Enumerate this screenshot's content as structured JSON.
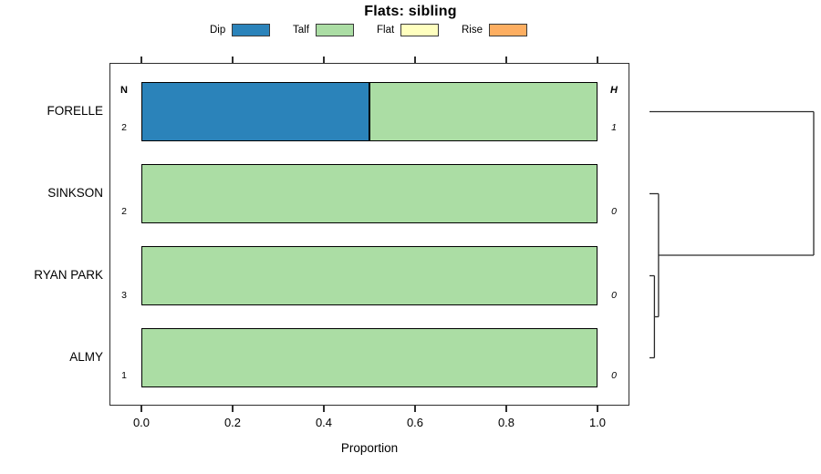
{
  "title": "Flats: sibling",
  "legend": {
    "items": [
      {
        "label": "Dip",
        "color": "#2B83BA"
      },
      {
        "label": "Talf",
        "color": "#ABDDA4"
      },
      {
        "label": "Flat",
        "color": "#FFFFBF"
      },
      {
        "label": "Rise",
        "color": "#FDAE61"
      }
    ]
  },
  "columns": {
    "n_header": "N",
    "h_header": "H"
  },
  "axis": {
    "label": "Proportion",
    "ticks": [
      "0.0",
      "0.2",
      "0.4",
      "0.6",
      "0.8",
      "1.0"
    ],
    "tick_values": [
      0.0,
      0.2,
      0.4,
      0.6,
      0.8,
      1.0
    ]
  },
  "chart_data": {
    "type": "bar",
    "orientation": "horizontal-stacked",
    "title": "Flats: sibling",
    "xlabel": "Proportion",
    "xlim": [
      0,
      1
    ],
    "categories": [
      "Dip",
      "Talf",
      "Flat",
      "Rise"
    ],
    "category_colors": {
      "Dip": "#2B83BA",
      "Talf": "#ABDDA4",
      "Flat": "#FFFFBF",
      "Rise": "#FDAE61"
    },
    "rows": [
      {
        "label": "FORELLE",
        "n": "2",
        "h": "1",
        "segments": [
          {
            "category": "Dip",
            "value": 0.5
          },
          {
            "category": "Talf",
            "value": 0.5
          }
        ]
      },
      {
        "label": "SINKSON",
        "n": "2",
        "h": "0",
        "segments": [
          {
            "category": "Talf",
            "value": 1.0
          }
        ]
      },
      {
        "label": "RYAN PARK",
        "n": "3",
        "h": "0",
        "segments": [
          {
            "category": "Talf",
            "value": 1.0
          }
        ]
      },
      {
        "label": "ALMY",
        "n": "1",
        "h": "0",
        "segments": [
          {
            "category": "Talf",
            "value": 1.0
          }
        ]
      }
    ],
    "dendrogram": {
      "position": "right",
      "leaves": [
        "FORELLE",
        "SINKSON",
        "RYAN PARK",
        "ALMY"
      ],
      "merges": [
        {
          "id": "m0",
          "children": [
            "RYAN PARK",
            "ALMY"
          ],
          "height": 0.03
        },
        {
          "id": "m1",
          "children": [
            "SINKSON",
            "m0"
          ],
          "height": 0.055
        },
        {
          "id": "m2",
          "children": [
            "FORELLE",
            "m1"
          ],
          "height": 1.0
        }
      ]
    }
  }
}
